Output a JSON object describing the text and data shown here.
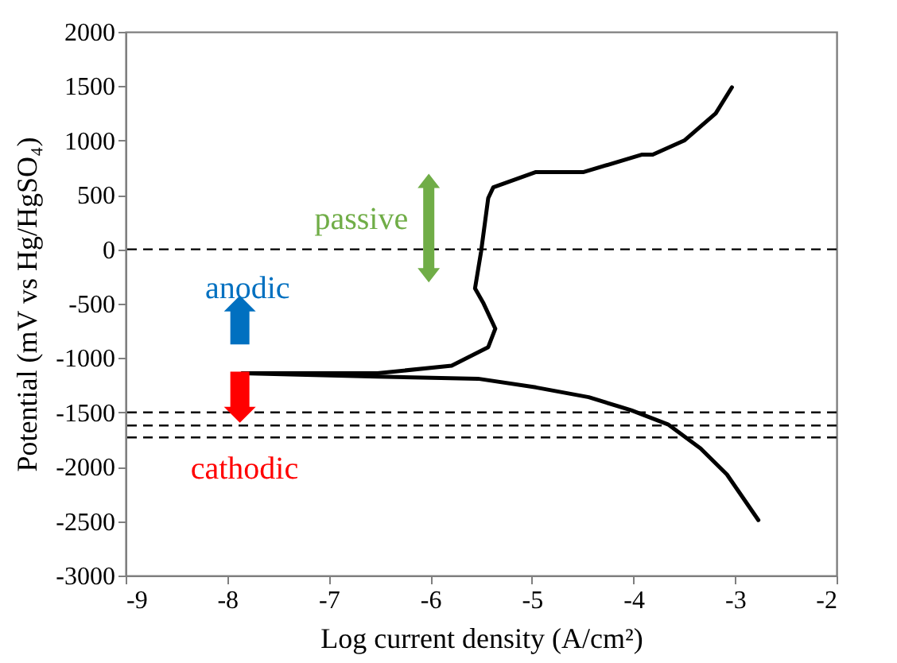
{
  "chart_data": {
    "type": "line",
    "xlabel": "Log current density (A/cm²)",
    "ylabel": "Potential (mV vs Hg/HgSO₄)",
    "xlim": [
      -9,
      -2
    ],
    "xticks": [
      -9,
      -8,
      -7,
      -6,
      -5,
      -4,
      -3,
      -2
    ],
    "ylim": [
      -3000,
      2000
    ],
    "yticks": [
      -3000,
      -2500,
      -2000,
      -1500,
      -1000,
      -500,
      0,
      500,
      1000,
      1500,
      2000
    ],
    "grid": false,
    "marker": "none",
    "line_style": "solid",
    "series": [
      {
        "color": "#000000",
        "x": [
          -7.85,
          -6.52,
          -5.79,
          -5.43,
          -5.36,
          -5.48,
          -5.56,
          -5.5,
          -5.43,
          -5.38,
          -4.96,
          -4.49,
          -3.92,
          -3.81,
          -3.5,
          -3.19,
          -3.03
        ],
        "values": [
          -1140,
          -1140,
          -1070,
          -900,
          -730,
          -490,
          -360,
          -20,
          470,
          570,
          710,
          710,
          870,
          870,
          1000,
          1250,
          1490
        ]
      },
      {
        "color": "#000000",
        "x": [
          -7.85,
          -6.52,
          -5.53,
          -4.96,
          -4.44,
          -4.02,
          -3.66,
          -3.34,
          -3.08,
          -2.77
        ],
        "values": [
          -1140,
          -1170,
          -1190,
          -1270,
          -1360,
          -1480,
          -1610,
          -1830,
          -2070,
          -2490
        ]
      }
    ],
    "ref_lines": [
      {
        "axis": "y",
        "value": 0,
        "color": "#000000",
        "line_style": "dashed"
      },
      {
        "axis": "y",
        "value": -1500,
        "color": "#000000",
        "line_style": "dashed"
      },
      {
        "axis": "y",
        "value": -1620,
        "color": "#000000",
        "line_style": "dashed"
      },
      {
        "axis": "y",
        "value": -1730,
        "color": "#000000",
        "line_style": "dashed"
      }
    ],
    "annotations": [
      "passive",
      "anodic",
      "cathodic"
    ]
  }
}
